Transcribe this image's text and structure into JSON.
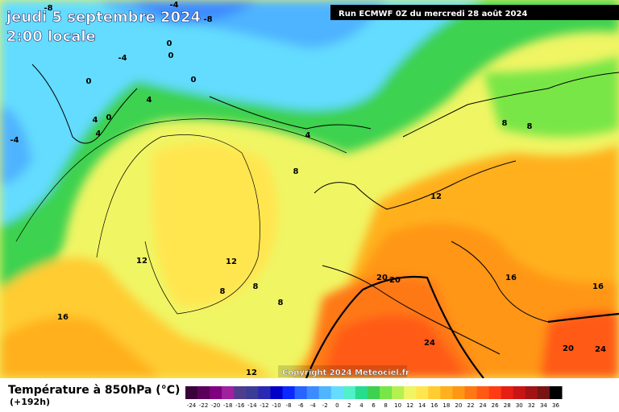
{
  "header": {
    "title": "jeudi 5 septembre 2024",
    "subtitle": "2:00 locale",
    "run": "Run ECMWF 0Z du mercredi 28 août 2024"
  },
  "copyright": "Copyright 2024 Meteociel.fr",
  "legend": {
    "title": "Température à 850hPa (°C)",
    "subtitle": "(+192h)",
    "labels": [
      -24,
      -22,
      -20,
      -18,
      -16,
      -14,
      -12,
      -10,
      -8,
      -6,
      -4,
      -2,
      0,
      2,
      4,
      6,
      8,
      10,
      12,
      14,
      16,
      18,
      20,
      22,
      24,
      26,
      28,
      30,
      32,
      34,
      36
    ],
    "colors": [
      "#3a003a",
      "#5a005a",
      "#800080",
      "#a020a0",
      "#503c8c",
      "#3c3c96",
      "#2828b4",
      "#0000c8",
      "#0a28ff",
      "#2864ff",
      "#3c8cff",
      "#50b4ff",
      "#64dcff",
      "#50f0c8",
      "#28dc8c",
      "#3cd250",
      "#78e646",
      "#b4f050",
      "#f0f564",
      "#ffe650",
      "#ffcc32",
      "#ffb01e",
      "#ff9614",
      "#ff7814",
      "#ff5a14",
      "#ff3c14",
      "#e61e14",
      "#c81414",
      "#a01414",
      "#781414",
      "#000000"
    ]
  },
  "isotherm_labels": [
    -8,
    -8,
    -4,
    -4,
    0,
    0,
    0,
    0,
    0,
    -4,
    4,
    4,
    4,
    4,
    8,
    8,
    8,
    12,
    12,
    12,
    12,
    8,
    8,
    8,
    16,
    16,
    16,
    20,
    20,
    20,
    24,
    24
  ]
}
